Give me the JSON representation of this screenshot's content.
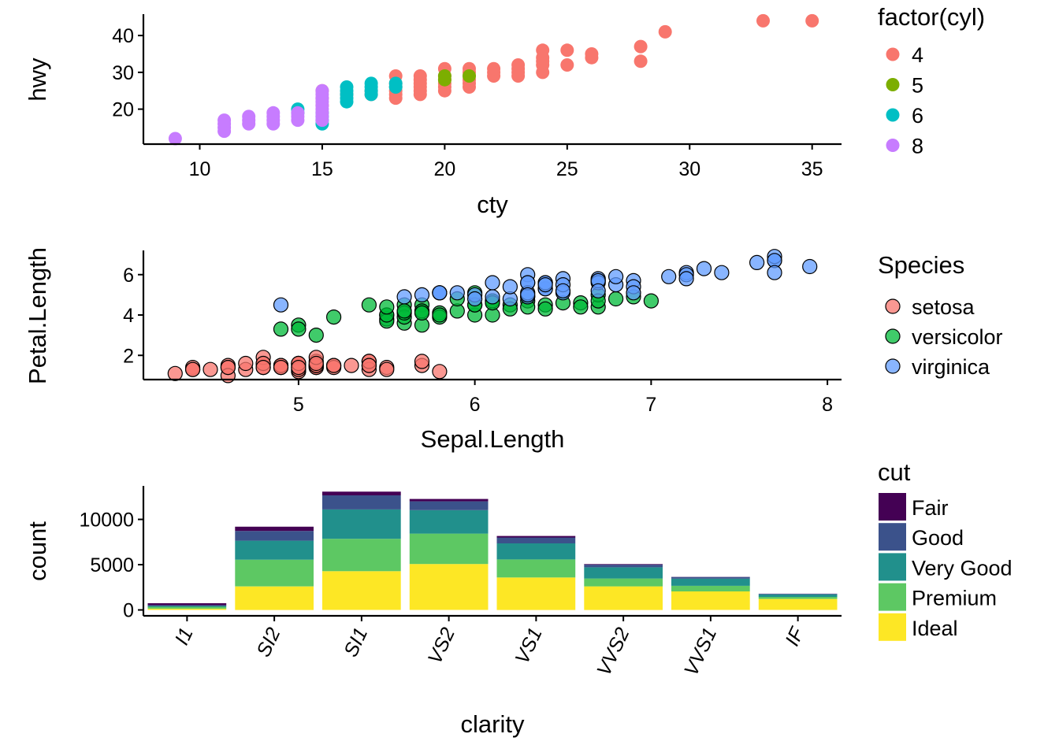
{
  "chart_data": [
    {
      "type": "scatter",
      "xlabel": "cty",
      "ylabel": "hwy",
      "xlim": [
        7.7,
        36.2
      ],
      "ylim": [
        10.5,
        45.8
      ],
      "x_ticks": [
        10,
        15,
        20,
        25,
        30,
        35
      ],
      "y_ticks": [
        20,
        30,
        40
      ],
      "legend": {
        "title": "factor(cyl)",
        "position": "right",
        "labels": [
          "4",
          "5",
          "6",
          "8"
        ]
      },
      "colors": {
        "4": "#F8766D",
        "5": "#7CAE00",
        "6": "#00BFC4",
        "8": "#C77CFF"
      },
      "series": [
        {
          "name": "4",
          "points": [
            [
              15,
              21
            ],
            [
              15,
              23
            ],
            [
              15,
              25
            ],
            [
              16,
              24
            ],
            [
              17,
              24
            ],
            [
              17,
              25
            ],
            [
              18,
              23
            ],
            [
              18,
              24
            ],
            [
              18,
              25
            ],
            [
              18,
              26
            ],
            [
              18,
              27
            ],
            [
              18,
              29
            ],
            [
              19,
              24
            ],
            [
              19,
              25
            ],
            [
              19,
              26
            ],
            [
              19,
              27
            ],
            [
              19,
              28
            ],
            [
              19,
              29
            ],
            [
              20,
              25
            ],
            [
              20,
              26
            ],
            [
              20,
              27
            ],
            [
              20,
              28
            ],
            [
              20,
              29
            ],
            [
              20,
              31
            ],
            [
              21,
              26
            ],
            [
              21,
              27
            ],
            [
              21,
              28
            ],
            [
              21,
              29
            ],
            [
              21,
              30
            ],
            [
              21,
              31
            ],
            [
              22,
              29
            ],
            [
              22,
              30
            ],
            [
              22,
              31
            ],
            [
              23,
              29
            ],
            [
              23,
              30
            ],
            [
              23,
              31
            ],
            [
              23,
              32
            ],
            [
              24,
              30
            ],
            [
              24,
              32
            ],
            [
              24,
              33
            ],
            [
              24,
              34
            ],
            [
              24,
              36
            ],
            [
              25,
              32
            ],
            [
              25,
              36
            ],
            [
              26,
              34
            ],
            [
              26,
              35
            ],
            [
              28,
              33
            ],
            [
              28,
              37
            ],
            [
              29,
              41
            ],
            [
              33,
              44
            ],
            [
              35,
              44
            ]
          ]
        },
        {
          "name": "5",
          "points": [
            [
              20,
              28
            ],
            [
              20,
              29
            ],
            [
              21,
              29
            ]
          ]
        },
        {
          "name": "6",
          "points": [
            [
              14,
              19
            ],
            [
              14,
              20
            ],
            [
              15,
              16
            ],
            [
              15,
              17
            ],
            [
              15,
              18
            ],
            [
              15,
              19
            ],
            [
              16,
              22
            ],
            [
              16,
              23
            ],
            [
              16,
              24
            ],
            [
              16,
              25
            ],
            [
              16,
              26
            ],
            [
              17,
              24
            ],
            [
              17,
              25
            ],
            [
              17,
              26
            ],
            [
              17,
              27
            ],
            [
              18,
              26
            ],
            [
              18,
              27
            ]
          ]
        },
        {
          "name": "8",
          "points": [
            [
              9,
              12
            ],
            [
              11,
              14
            ],
            [
              11,
              15
            ],
            [
              11,
              16
            ],
            [
              11,
              17
            ],
            [
              12,
              16
            ],
            [
              12,
              17
            ],
            [
              12,
              18
            ],
            [
              13,
              16
            ],
            [
              13,
              17
            ],
            [
              13,
              18
            ],
            [
              13,
              19
            ],
            [
              14,
              17
            ],
            [
              14,
              18
            ],
            [
              14,
              19
            ],
            [
              15,
              17
            ],
            [
              15,
              18
            ],
            [
              15,
              19
            ],
            [
              15,
              20
            ],
            [
              15,
              21
            ],
            [
              15,
              22
            ],
            [
              15,
              23
            ],
            [
              15,
              24
            ],
            [
              15,
              25
            ]
          ]
        }
      ]
    },
    {
      "type": "scatter",
      "xlabel": "Sepal.Length",
      "ylabel": "Petal.Length",
      "xlim": [
        4.12,
        8.08
      ],
      "ylim": [
        0.8,
        7.2
      ],
      "x_ticks": [
        5,
        6,
        7,
        8
      ],
      "y_ticks": [
        2,
        4,
        6
      ],
      "legend": {
        "title": "Species",
        "position": "right",
        "labels": [
          "setosa",
          "versicolor",
          "virginica"
        ]
      },
      "colors": {
        "setosa": "#F8766D",
        "versicolor": "#00BA38",
        "virginica": "#619CFF"
      },
      "series": [
        {
          "name": "setosa",
          "points": [
            [
              5.1,
              1.4
            ],
            [
              4.9,
              1.4
            ],
            [
              4.7,
              1.3
            ],
            [
              4.6,
              1.5
            ],
            [
              5.0,
              1.4
            ],
            [
              5.4,
              1.7
            ],
            [
              4.6,
              1.4
            ],
            [
              5.0,
              1.5
            ],
            [
              4.4,
              1.4
            ],
            [
              4.9,
              1.5
            ],
            [
              5.4,
              1.5
            ],
            [
              4.8,
              1.6
            ],
            [
              4.8,
              1.4
            ],
            [
              4.3,
              1.1
            ],
            [
              5.8,
              1.2
            ],
            [
              5.7,
              1.5
            ],
            [
              5.4,
              1.3
            ],
            [
              5.1,
              1.4
            ],
            [
              5.7,
              1.7
            ],
            [
              5.1,
              1.5
            ],
            [
              5.4,
              1.7
            ],
            [
              5.1,
              1.5
            ],
            [
              4.6,
              1.0
            ],
            [
              5.1,
              1.7
            ],
            [
              4.8,
              1.9
            ],
            [
              5.0,
              1.6
            ],
            [
              5.0,
              1.6
            ],
            [
              5.2,
              1.5
            ],
            [
              5.2,
              1.4
            ],
            [
              4.7,
              1.6
            ],
            [
              4.8,
              1.6
            ],
            [
              5.4,
              1.5
            ],
            [
              5.2,
              1.5
            ],
            [
              5.5,
              1.4
            ],
            [
              4.9,
              1.5
            ],
            [
              5.0,
              1.2
            ],
            [
              5.5,
              1.3
            ],
            [
              4.9,
              1.4
            ],
            [
              4.4,
              1.3
            ],
            [
              5.1,
              1.5
            ],
            [
              5.0,
              1.3
            ],
            [
              4.5,
              1.3
            ],
            [
              4.4,
              1.3
            ],
            [
              5.0,
              1.6
            ],
            [
              5.1,
              1.9
            ],
            [
              4.8,
              1.4
            ],
            [
              5.1,
              1.6
            ],
            [
              4.6,
              1.4
            ],
            [
              5.3,
              1.5
            ],
            [
              5.0,
              1.4
            ]
          ]
        },
        {
          "name": "versicolor",
          "points": [
            [
              7.0,
              4.7
            ],
            [
              6.4,
              4.5
            ],
            [
              6.9,
              4.9
            ],
            [
              5.5,
              4.0
            ],
            [
              6.5,
              4.6
            ],
            [
              5.7,
              4.5
            ],
            [
              6.3,
              4.7
            ],
            [
              4.9,
              3.3
            ],
            [
              6.6,
              4.6
            ],
            [
              5.2,
              3.9
            ],
            [
              5.0,
              3.5
            ],
            [
              5.9,
              4.2
            ],
            [
              6.0,
              4.0
            ],
            [
              6.1,
              4.7
            ],
            [
              5.6,
              3.6
            ],
            [
              6.7,
              4.4
            ],
            [
              5.6,
              4.5
            ],
            [
              5.8,
              4.1
            ],
            [
              6.2,
              4.5
            ],
            [
              5.6,
              3.9
            ],
            [
              5.9,
              4.8
            ],
            [
              6.1,
              4.0
            ],
            [
              6.3,
              4.9
            ],
            [
              6.1,
              4.7
            ],
            [
              6.4,
              4.3
            ],
            [
              6.6,
              4.4
            ],
            [
              6.8,
              4.8
            ],
            [
              6.7,
              5.0
            ],
            [
              6.0,
              4.5
            ],
            [
              5.7,
              3.5
            ],
            [
              5.5,
              3.8
            ],
            [
              5.5,
              3.7
            ],
            [
              5.8,
              3.9
            ],
            [
              6.0,
              5.1
            ],
            [
              5.4,
              4.5
            ],
            [
              6.0,
              4.5
            ],
            [
              6.7,
              4.7
            ],
            [
              6.3,
              4.4
            ],
            [
              5.6,
              4.1
            ],
            [
              5.5,
              4.0
            ],
            [
              5.5,
              4.4
            ],
            [
              6.1,
              4.6
            ],
            [
              5.8,
              4.0
            ],
            [
              5.0,
              3.3
            ],
            [
              5.6,
              4.2
            ],
            [
              5.7,
              4.2
            ],
            [
              5.7,
              4.2
            ],
            [
              6.2,
              4.3
            ],
            [
              5.1,
              3.0
            ],
            [
              5.7,
              4.1
            ]
          ]
        },
        {
          "name": "virginica",
          "points": [
            [
              6.3,
              6.0
            ],
            [
              5.8,
              5.1
            ],
            [
              7.1,
              5.9
            ],
            [
              6.3,
              5.6
            ],
            [
              6.5,
              5.8
            ],
            [
              7.6,
              6.6
            ],
            [
              4.9,
              4.5
            ],
            [
              7.3,
              6.3
            ],
            [
              6.7,
              5.8
            ],
            [
              7.2,
              6.1
            ],
            [
              6.5,
              5.1
            ],
            [
              6.4,
              5.3
            ],
            [
              6.8,
              5.5
            ],
            [
              5.7,
              5.0
            ],
            [
              5.8,
              5.1
            ],
            [
              6.4,
              5.3
            ],
            [
              6.5,
              5.5
            ],
            [
              7.7,
              6.7
            ],
            [
              7.7,
              6.9
            ],
            [
              6.0,
              5.0
            ],
            [
              6.9,
              5.7
            ],
            [
              5.6,
              4.9
            ],
            [
              7.7,
              6.7
            ],
            [
              6.3,
              4.9
            ],
            [
              6.7,
              5.7
            ],
            [
              7.2,
              6.0
            ],
            [
              6.2,
              4.8
            ],
            [
              6.1,
              4.9
            ],
            [
              6.4,
              5.6
            ],
            [
              7.2,
              5.8
            ],
            [
              7.4,
              6.1
            ],
            [
              7.9,
              6.4
            ],
            [
              6.4,
              5.6
            ],
            [
              6.3,
              5.1
            ],
            [
              6.1,
              5.6
            ],
            [
              7.7,
              6.1
            ],
            [
              6.3,
              5.6
            ],
            [
              6.4,
              5.5
            ],
            [
              6.0,
              4.8
            ],
            [
              6.9,
              5.4
            ],
            [
              6.7,
              5.6
            ],
            [
              6.9,
              5.1
            ],
            [
              5.8,
              5.1
            ],
            [
              6.8,
              5.9
            ],
            [
              6.7,
              5.7
            ],
            [
              6.7,
              5.2
            ],
            [
              6.3,
              5.0
            ],
            [
              6.5,
              5.2
            ],
            [
              6.2,
              5.4
            ],
            [
              5.9,
              5.1
            ]
          ]
        }
      ]
    },
    {
      "type": "bar",
      "stacked": true,
      "xlabel": "clarity",
      "ylabel": "count",
      "ylim": [
        -650,
        13700
      ],
      "y_ticks": [
        0,
        5000,
        10000
      ],
      "categories": [
        "I1",
        "SI2",
        "SI1",
        "VS2",
        "VS1",
        "VVS2",
        "VVS1",
        "IF"
      ],
      "legend": {
        "title": "cut",
        "position": "right",
        "labels": [
          "Fair",
          "Good",
          "Very Good",
          "Premium",
          "Ideal"
        ]
      },
      "series": [
        {
          "name": "Ideal",
          "color": "#FDE725",
          "values": [
            146,
            2598,
            4282,
            5071,
            3589,
            2606,
            2047,
            1212
          ]
        },
        {
          "name": "Premium",
          "color": "#5DC863",
          "values": [
            205,
            2949,
            3575,
            3357,
            1989,
            870,
            616,
            230
          ]
        },
        {
          "name": "Very Good",
          "color": "#21908C",
          "values": [
            84,
            2100,
            3240,
            2591,
            1775,
            1235,
            789,
            268
          ]
        },
        {
          "name": "Good",
          "color": "#3B528B",
          "values": [
            96,
            1081,
            1560,
            978,
            648,
            286,
            186,
            71
          ]
        },
        {
          "name": "Fair",
          "color": "#440154",
          "values": [
            210,
            466,
            408,
            261,
            170,
            69,
            17,
            9
          ]
        }
      ]
    }
  ]
}
